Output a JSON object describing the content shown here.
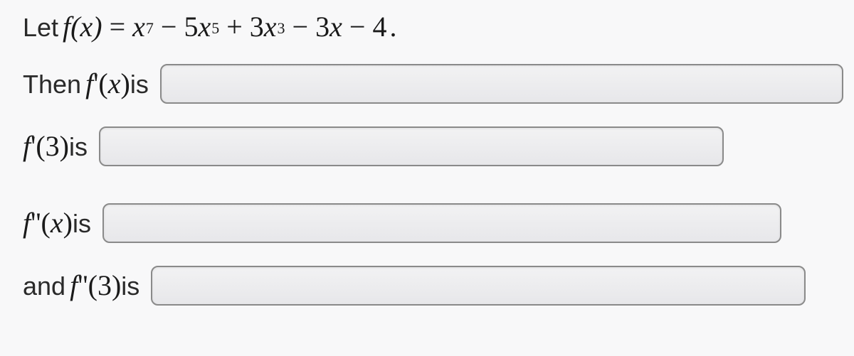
{
  "problem": {
    "let_text": "Let ",
    "f_of_x": "f(x)",
    "equals": " = ",
    "term1_var": "x",
    "term1_exp": "7",
    "minus": " − ",
    "term2_coef": "5",
    "term2_var": "x",
    "term2_exp": "5",
    "plus": " + ",
    "term3_coef": "3",
    "term3_var": "x",
    "term3_exp": "3",
    "term4_coef": "3",
    "term4_var": "x",
    "term5": "4",
    "period": "."
  },
  "line2": {
    "then_text": "Then ",
    "expr_f": "f",
    "expr_prime": "'",
    "expr_open": "(",
    "expr_arg": "x",
    "expr_close": ")",
    "is_text": " is"
  },
  "line3": {
    "expr_f": "f",
    "expr_prime": "'",
    "expr_open": "(",
    "expr_arg": "3",
    "expr_close": ")",
    "is_text": " is"
  },
  "line4": {
    "expr_f": "f",
    "expr_prime": "''",
    "expr_open": "(",
    "expr_arg": "x",
    "expr_close": ")",
    "is_text": " is"
  },
  "line5": {
    "and_text": "and ",
    "expr_f": "f",
    "expr_prime": "''",
    "expr_open": "(",
    "expr_arg": "3",
    "expr_close": ")",
    "is_text": " is"
  },
  "inputs": {
    "fprime_x": "",
    "fprime_3": "",
    "fpp_x": "",
    "fpp_3": ""
  },
  "colors": {
    "page_bg": "#f8f8f9",
    "text": "#1a1a1a",
    "input_border": "#8a8a8a",
    "input_bg_top": "#f2f2f3",
    "input_bg_bottom": "#e7e7ea"
  }
}
